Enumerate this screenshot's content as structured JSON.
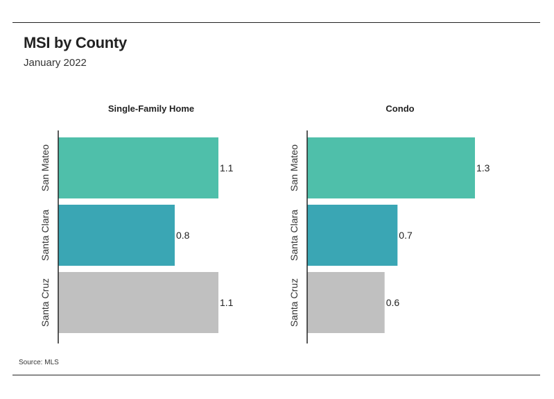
{
  "header": {
    "title": "MSI by County",
    "subtitle": "January 2022"
  },
  "footer": {
    "source": "Source:  MLS"
  },
  "colors": {
    "San Mateo": "#4fbfaa",
    "Santa Clara": "#3aa6b4",
    "Santa Cruz": "#c0c0c0",
    "axis": "#222222"
  },
  "chart_data": [
    {
      "type": "bar",
      "orientation": "horizontal",
      "title": "Single-Family Home",
      "categories": [
        "San Mateo",
        "Santa Clara",
        "Santa Cruz"
      ],
      "values": [
        1.1,
        0.8,
        1.1
      ],
      "xlim": [
        0,
        1.3
      ],
      "grid": false,
      "data_labels": true
    },
    {
      "type": "bar",
      "orientation": "horizontal",
      "title": "Condo",
      "categories": [
        "San Mateo",
        "Santa Clara",
        "Santa Cruz"
      ],
      "values": [
        1.3,
        0.7,
        0.6
      ],
      "xlim": [
        0,
        1.3
      ],
      "grid": false,
      "data_labels": true
    }
  ]
}
